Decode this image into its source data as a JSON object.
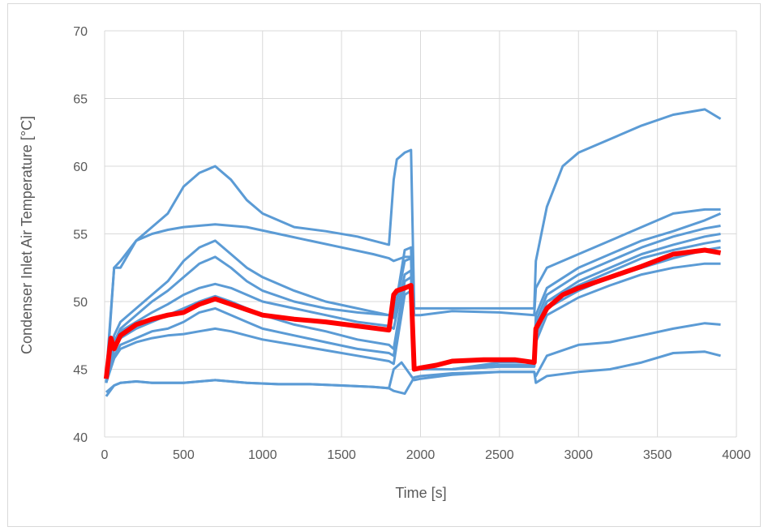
{
  "chart_data": {
    "type": "line",
    "title": "",
    "xlabel": "Time [s]",
    "ylabel": "Condenser Inlet Air Temperature [°C]",
    "xlim": [
      0,
      4000
    ],
    "ylim": [
      40,
      70
    ],
    "x_ticks": [
      0,
      500,
      1000,
      1500,
      2000,
      2500,
      3000,
      3500,
      4000
    ],
    "y_ticks": [
      40,
      45,
      50,
      55,
      60,
      65,
      70
    ],
    "grid": true,
    "legend": "none",
    "colors": {
      "series": "#5b9bd5",
      "highlight": "#ff0000",
      "grid": "#d9d9d9",
      "text": "#595959"
    },
    "series": [
      {
        "x": [
          10,
          60,
          100,
          200,
          300,
          400,
          500,
          600,
          700,
          800,
          900,
          1000,
          1200,
          1400,
          1600,
          1800,
          1830,
          1850,
          1900,
          1940,
          1960,
          2000,
          2200,
          2500,
          2720,
          2730,
          2800,
          2900,
          3000,
          3200,
          3400,
          3600,
          3800,
          3900
        ],
        "y": [
          44.5,
          52.5,
          52.5,
          54.5,
          55.5,
          56.5,
          58.5,
          59.5,
          60.0,
          59.0,
          57.5,
          56.5,
          55.5,
          55.2,
          54.8,
          54.2,
          59.0,
          60.5,
          61.0,
          61.2,
          49.5,
          49.5,
          49.5,
          49.5,
          49.5,
          53.0,
          57.0,
          60.0,
          61.0,
          62.0,
          63.0,
          63.8,
          64.2,
          63.5
        ]
      },
      {
        "x": [
          10,
          60,
          100,
          200,
          300,
          400,
          500,
          700,
          900,
          1100,
          1300,
          1500,
          1700,
          1800,
          1830,
          1900,
          1940,
          1960,
          2000,
          2200,
          2500,
          2720,
          2730,
          2800,
          3000,
          3200,
          3400,
          3600,
          3800,
          3900
        ],
        "y": [
          44.0,
          52.5,
          53.0,
          54.5,
          55.0,
          55.3,
          55.5,
          55.7,
          55.5,
          55.0,
          54.5,
          54.0,
          53.5,
          53.2,
          53.0,
          53.3,
          53.3,
          49.0,
          49.0,
          49.3,
          49.2,
          49.0,
          51.0,
          52.5,
          53.5,
          54.5,
          55.5,
          56.5,
          56.8,
          56.8
        ]
      },
      {
        "x": [
          10,
          60,
          100,
          200,
          300,
          400,
          500,
          600,
          700,
          800,
          900,
          1000,
          1200,
          1400,
          1600,
          1800,
          1830,
          1900,
          1940,
          1960,
          2000,
          2200,
          2500,
          2720,
          2730,
          2800,
          3000,
          3200,
          3400,
          3600,
          3800,
          3900
        ],
        "y": [
          44.0,
          47.5,
          48.5,
          49.5,
          50.5,
          51.5,
          53.0,
          54.0,
          54.5,
          53.5,
          52.5,
          51.8,
          50.8,
          50.0,
          49.5,
          49.0,
          48.8,
          53.8,
          54.0,
          45.0,
          45.0,
          45.0,
          45.5,
          45.5,
          49.0,
          51.0,
          52.5,
          53.5,
          54.5,
          55.2,
          56.0,
          56.5
        ]
      },
      {
        "x": [
          10,
          60,
          100,
          200,
          300,
          400,
          500,
          600,
          700,
          800,
          900,
          1000,
          1200,
          1400,
          1600,
          1800,
          1830,
          1900,
          1940,
          1960,
          2000,
          2200,
          2500,
          2720,
          2730,
          2800,
          3000,
          3200,
          3400,
          3600,
          3800,
          3900
        ],
        "y": [
          44.0,
          47.0,
          48.0,
          49.0,
          50.0,
          50.8,
          51.8,
          52.8,
          53.3,
          52.5,
          51.5,
          50.8,
          50.0,
          49.5,
          49.2,
          49.0,
          48.8,
          53.0,
          53.2,
          45.0,
          45.0,
          45.0,
          45.3,
          45.3,
          48.5,
          50.5,
          52.0,
          53.0,
          54.0,
          54.8,
          55.4,
          55.6
        ]
      },
      {
        "x": [
          10,
          60,
          100,
          200,
          300,
          400,
          500,
          600,
          700,
          800,
          900,
          1000,
          1200,
          1400,
          1600,
          1800,
          1830,
          1900,
          1940,
          1960,
          2000,
          2200,
          2500,
          2720,
          2730,
          2800,
          3000,
          3200,
          3400,
          3600,
          3800,
          3900
        ],
        "y": [
          44.0,
          47.0,
          47.8,
          48.5,
          49.2,
          49.8,
          50.5,
          51.0,
          51.3,
          51.0,
          50.5,
          50.0,
          49.5,
          49.0,
          48.5,
          48.2,
          48.0,
          52.0,
          52.3,
          45.0,
          45.0,
          45.0,
          45.3,
          45.3,
          48.0,
          50.0,
          51.5,
          52.5,
          53.5,
          54.2,
          54.8,
          55.0
        ]
      },
      {
        "x": [
          10,
          60,
          100,
          200,
          300,
          400,
          500,
          600,
          700,
          800,
          900,
          1000,
          1200,
          1400,
          1600,
          1800,
          1830,
          1900,
          1940,
          1960,
          2000,
          2200,
          2500,
          2720,
          2730,
          2800,
          3000,
          3200,
          3400,
          3600,
          3800,
          3900
        ],
        "y": [
          44.0,
          46.5,
          47.3,
          48.0,
          48.5,
          49.0,
          49.5,
          50.0,
          50.4,
          50.0,
          49.5,
          49.0,
          48.3,
          47.8,
          47.2,
          46.8,
          46.5,
          51.5,
          51.8,
          45.0,
          45.0,
          45.0,
          45.3,
          45.3,
          48.0,
          50.0,
          51.2,
          52.2,
          53.2,
          53.8,
          54.3,
          54.5
        ]
      },
      {
        "x": [
          10,
          60,
          100,
          200,
          300,
          400,
          500,
          600,
          700,
          800,
          900,
          1000,
          1200,
          1400,
          1600,
          1800,
          1830,
          1900,
          1940,
          1960,
          2000,
          2200,
          2500,
          2720,
          2730,
          2800,
          3000,
          3200,
          3400,
          3600,
          3800,
          3900
        ],
        "y": [
          44.0,
          46.0,
          46.8,
          47.3,
          47.8,
          48.0,
          48.5,
          49.2,
          49.5,
          49.0,
          48.5,
          48.0,
          47.5,
          47.0,
          46.5,
          46.2,
          46.0,
          51.0,
          51.3,
          45.0,
          45.0,
          45.0,
          45.2,
          45.2,
          47.5,
          49.5,
          50.8,
          51.8,
          52.5,
          53.2,
          53.8,
          54.0
        ]
      },
      {
        "x": [
          10,
          60,
          100,
          200,
          300,
          400,
          500,
          600,
          700,
          800,
          900,
          1000,
          1200,
          1400,
          1600,
          1800,
          1830,
          1900,
          1940,
          1960,
          2000,
          2200,
          2500,
          2720,
          2730,
          2800,
          3000,
          3200,
          3400,
          3600,
          3800,
          3900
        ],
        "y": [
          44.0,
          45.8,
          46.5,
          47.0,
          47.3,
          47.5,
          47.6,
          47.8,
          48.0,
          47.8,
          47.5,
          47.2,
          46.8,
          46.4,
          46.0,
          45.6,
          45.4,
          50.5,
          50.8,
          45.0,
          45.0,
          45.0,
          45.2,
          45.2,
          47.0,
          49.0,
          50.3,
          51.2,
          52.0,
          52.5,
          52.8,
          52.8
        ]
      },
      {
        "x": [
          10,
          60,
          100,
          200,
          300,
          500,
          700,
          900,
          1100,
          1300,
          1500,
          1700,
          1800,
          1830,
          1900,
          1960,
          2000,
          2200,
          2500,
          2720,
          2730,
          2800,
          3000,
          3200,
          3400,
          3600,
          3800,
          3900
        ],
        "y": [
          43.3,
          43.8,
          44.0,
          44.1,
          44.0,
          44.0,
          44.2,
          44.0,
          43.9,
          43.9,
          43.8,
          43.7,
          43.6,
          43.4,
          43.2,
          44.4,
          44.5,
          44.7,
          44.8,
          44.8,
          44.0,
          44.5,
          44.8,
          45.0,
          45.5,
          46.2,
          46.3,
          46.0
        ]
      },
      {
        "x": [
          10,
          60,
          100,
          200,
          300,
          500,
          700,
          900,
          1100,
          1300,
          1500,
          1700,
          1800,
          1830,
          1880,
          1960,
          2000,
          2200,
          2500,
          2720,
          2730,
          2800,
          3000,
          3200,
          3400,
          3600,
          3800,
          3900
        ],
        "y": [
          43.0,
          43.8,
          44.0,
          44.1,
          44.0,
          44.0,
          44.2,
          44.0,
          43.9,
          43.9,
          43.8,
          43.7,
          43.6,
          45.0,
          45.5,
          44.2,
          44.3,
          44.6,
          44.8,
          44.8,
          44.5,
          46.0,
          46.8,
          47.0,
          47.5,
          48.0,
          48.4,
          48.3
        ]
      }
    ],
    "highlight_series": {
      "x": [
        10,
        40,
        60,
        100,
        200,
        300,
        400,
        500,
        600,
        700,
        800,
        900,
        1000,
        1200,
        1400,
        1600,
        1800,
        1830,
        1850,
        1900,
        1940,
        1960,
        2000,
        2100,
        2200,
        2400,
        2600,
        2720,
        2730,
        2800,
        2900,
        3000,
        3200,
        3400,
        3600,
        3800,
        3900
      ],
      "y": [
        44.3,
        47.3,
        46.5,
        47.5,
        48.3,
        48.7,
        49.0,
        49.2,
        49.8,
        50.2,
        49.8,
        49.4,
        49.0,
        48.7,
        48.5,
        48.2,
        47.9,
        50.5,
        50.8,
        51.0,
        51.2,
        45.0,
        45.1,
        45.3,
        45.6,
        45.7,
        45.7,
        45.5,
        48.0,
        49.5,
        50.5,
        51.0,
        51.8,
        52.6,
        53.5,
        53.8,
        53.6
      ]
    }
  }
}
